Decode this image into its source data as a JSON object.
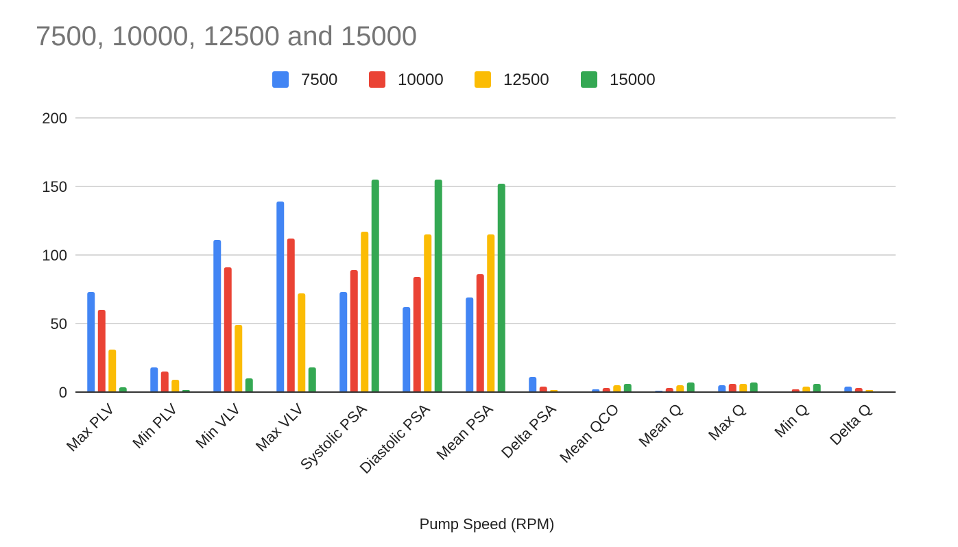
{
  "chart_data": {
    "type": "bar",
    "title": "7500, 10000, 12500 and 15000",
    "xlabel": "Pump Speed (RPM)",
    "ylabel": "",
    "ylim": [
      0,
      200
    ],
    "yticks": [
      0,
      50,
      100,
      150,
      200
    ],
    "grid": true,
    "legend_position": "top-center",
    "categories": [
      "Max PLV",
      "Min PLV",
      "Min VLV",
      "Max VLV",
      "Systolic PSA",
      "Diastolic PSA",
      "Mean PSA",
      "Delta PSA",
      "Mean QCO",
      "Mean Q",
      "Max Q",
      "Min Q",
      "Delta Q"
    ],
    "series": [
      {
        "name": "7500",
        "color": "#4285f4",
        "values": [
          73,
          18,
          111,
          139,
          73,
          62,
          69,
          11,
          2,
          1,
          5,
          0.5,
          4
        ]
      },
      {
        "name": "10000",
        "color": "#ea4335",
        "values": [
          60,
          15,
          91,
          112,
          89,
          84,
          86,
          4,
          3,
          3,
          6,
          2,
          3
        ]
      },
      {
        "name": "12500",
        "color": "#fbbc04",
        "values": [
          31,
          9,
          49,
          72,
          117,
          115,
          115,
          1.5,
          5,
          5,
          6,
          4,
          1.5
        ]
      },
      {
        "name": "15000",
        "color": "#34a853",
        "values": [
          3.5,
          1.5,
          10,
          18,
          155,
          155,
          152,
          0,
          6,
          7,
          7,
          6,
          0
        ]
      }
    ]
  }
}
